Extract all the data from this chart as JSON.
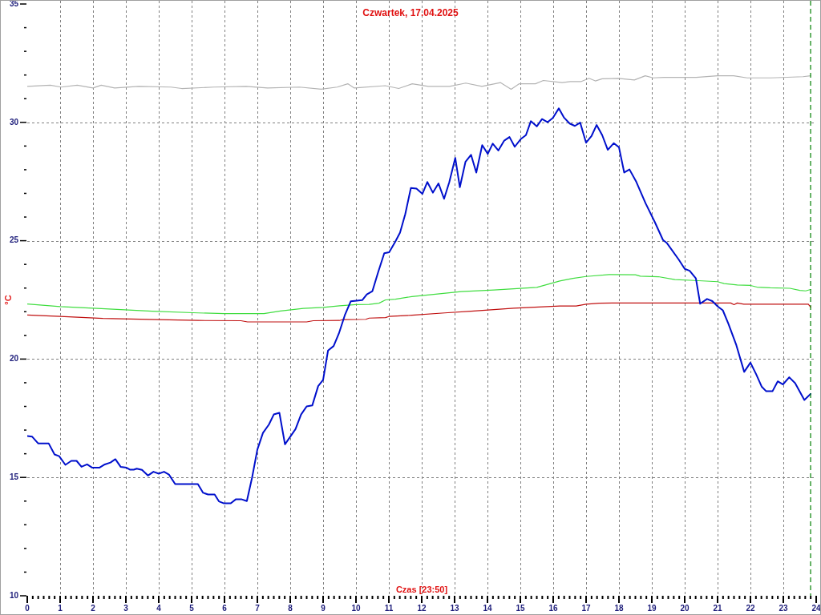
{
  "chart_data": {
    "type": "line",
    "title": "Czwartek, 17.04.2025",
    "xlabel": "Czas [23:50]",
    "ylabel": "°C",
    "xlim": [
      0,
      24
    ],
    "xticks": [
      0,
      {
        "value": 0.167,
        "label": null
      },
      {
        "value": 0.333,
        "label": null
      },
      {
        "value": 0.5,
        "label": null
      },
      {
        "value": 0.667,
        "label": null
      },
      {
        "value": 0.833,
        "label": null
      },
      1,
      {
        "value": 1.167,
        "label": null
      },
      {
        "value": 1.333,
        "label": null
      },
      {
        "value": 1.5,
        "label": null
      },
      {
        "value": 1.667,
        "label": null
      },
      {
        "value": 1.833,
        "label": null
      },
      2,
      {
        "value": 2.167,
        "label": null
      },
      {
        "value": 2.333,
        "label": null
      },
      {
        "value": 2.5,
        "label": null
      },
      {
        "value": 2.667,
        "label": null
      },
      {
        "value": 2.833,
        "label": null
      },
      3,
      {
        "value": 3.167,
        "label": null
      },
      {
        "value": 3.333,
        "label": null
      },
      {
        "value": 3.5,
        "label": null
      },
      {
        "value": 3.667,
        "label": null
      },
      {
        "value": 3.833,
        "label": null
      },
      4,
      {
        "value": 4.167,
        "label": null
      },
      {
        "value": 4.333,
        "label": null
      },
      {
        "value": 4.5,
        "label": null
      },
      {
        "value": 4.667,
        "label": null
      },
      {
        "value": 4.833,
        "label": null
      },
      5,
      {
        "value": 5.167,
        "label": null
      },
      {
        "value": 5.333,
        "label": null
      },
      {
        "value": 5.5,
        "label": null
      },
      {
        "value": 5.667,
        "label": null
      },
      {
        "value": 5.833,
        "label": null
      },
      6,
      {
        "value": 6.167,
        "label": null
      },
      {
        "value": 6.333,
        "label": null
      },
      {
        "value": 6.5,
        "label": null
      },
      {
        "value": 6.667,
        "label": null
      },
      {
        "value": 6.833,
        "label": null
      },
      7,
      {
        "value": 7.167,
        "label": null
      },
      {
        "value": 7.333,
        "label": null
      },
      {
        "value": 7.5,
        "label": null
      },
      {
        "value": 7.667,
        "label": null
      },
      {
        "value": 7.833,
        "label": null
      },
      8,
      {
        "value": 8.167,
        "label": null
      },
      {
        "value": 8.333,
        "label": null
      },
      {
        "value": 8.5,
        "label": null
      },
      {
        "value": 8.667,
        "label": null
      },
      {
        "value": 8.833,
        "label": null
      },
      9,
      {
        "value": 9.167,
        "label": null
      },
      {
        "value": 9.333,
        "label": null
      },
      {
        "value": 9.5,
        "label": null
      },
      {
        "value": 9.667,
        "label": null
      },
      {
        "value": 9.833,
        "label": null
      },
      10,
      {
        "value": 10.167,
        "label": null
      },
      {
        "value": 10.333,
        "label": null
      },
      {
        "value": 10.5,
        "label": null
      },
      {
        "value": 10.667,
        "label": null
      },
      {
        "value": 10.833,
        "label": null
      },
      11,
      {
        "value": 11.167,
        "label": null
      },
      {
        "value": 11.333,
        "label": null
      },
      {
        "value": 11.5,
        "label": null
      },
      {
        "value": 11.667,
        "label": null
      },
      {
        "value": 11.833,
        "label": null
      },
      12,
      {
        "value": 12.167,
        "label": null
      },
      {
        "value": 12.333,
        "label": null
      },
      {
        "value": 12.5,
        "label": null
      },
      {
        "value": 12.667,
        "label": null
      },
      {
        "value": 12.833,
        "label": null
      },
      13,
      {
        "value": 13.167,
        "label": null
      },
      {
        "value": 13.333,
        "label": null
      },
      {
        "value": 13.5,
        "label": null
      },
      {
        "value": 13.667,
        "label": null
      },
      {
        "value": 13.833,
        "label": null
      },
      14,
      {
        "value": 14.167,
        "label": null
      },
      {
        "value": 14.333,
        "label": null
      },
      {
        "value": 14.5,
        "label": null
      },
      {
        "value": 14.667,
        "label": null
      },
      {
        "value": 14.833,
        "label": null
      },
      15,
      {
        "value": 15.167,
        "label": null
      },
      {
        "value": 15.333,
        "label": null
      },
      {
        "value": 15.5,
        "label": null
      },
      {
        "value": 15.667,
        "label": null
      },
      {
        "value": 15.833,
        "label": null
      },
      16,
      {
        "value": 16.167,
        "label": null
      },
      {
        "value": 16.333,
        "label": null
      },
      {
        "value": 16.5,
        "label": null
      },
      {
        "value": 16.667,
        "label": null
      },
      {
        "value": 16.833,
        "label": null
      },
      17,
      {
        "value": 17.167,
        "label": null
      },
      {
        "value": 17.333,
        "label": null
      },
      {
        "value": 17.5,
        "label": null
      },
      {
        "value": 17.667,
        "label": null
      },
      {
        "value": 17.833,
        "label": null
      },
      18,
      {
        "value": 18.167,
        "label": null
      },
      {
        "value": 18.333,
        "label": null
      },
      {
        "value": 18.5,
        "label": null
      },
      {
        "value": 18.667,
        "label": null
      },
      {
        "value": 18.833,
        "label": null
      },
      19,
      {
        "value": 19.167,
        "label": null
      },
      {
        "value": 19.333,
        "label": null
      },
      {
        "value": 19.5,
        "label": null
      },
      {
        "value": 19.667,
        "label": null
      },
      {
        "value": 19.833,
        "label": null
      },
      20,
      {
        "value": 20.167,
        "label": null
      },
      {
        "value": 20.333,
        "label": null
      },
      {
        "value": 20.5,
        "label": null
      },
      {
        "value": 20.667,
        "label": null
      },
      {
        "value": 20.833,
        "label": null
      },
      21,
      {
        "value": 21.167,
        "label": null
      },
      {
        "value": 21.333,
        "label": null
      },
      {
        "value": 21.5,
        "label": null
      },
      {
        "value": 21.667,
        "label": null
      },
      {
        "value": 21.833,
        "label": null
      },
      22,
      {
        "value": 22.167,
        "label": null
      },
      {
        "value": 22.333,
        "label": null
      },
      {
        "value": 22.5,
        "label": null
      },
      {
        "value": 22.667,
        "label": null
      },
      {
        "value": 22.833,
        "label": null
      },
      23,
      {
        "value": 23.167,
        "label": null
      },
      {
        "value": 23.333,
        "label": null
      },
      {
        "value": 23.5,
        "label": null
      },
      {
        "value": 23.667,
        "label": null
      },
      {
        "value": 23.833,
        "label": null
      },
      24
    ],
    "ylim": [
      10,
      35
    ],
    "yticks": [
      10,
      {
        "value": 11,
        "label": null
      },
      {
        "value": 12,
        "label": null
      },
      {
        "value": 13,
        "label": null
      },
      {
        "value": 14,
        "label": null
      },
      15,
      {
        "value": 16,
        "label": null
      },
      {
        "value": 17,
        "label": null
      },
      {
        "value": 18,
        "label": null
      },
      {
        "value": 19,
        "label": null
      },
      20,
      {
        "value": 21,
        "label": null
      },
      {
        "value": 22,
        "label": null
      },
      {
        "value": 23,
        "label": null
      },
      {
        "value": 24,
        "label": null
      },
      25,
      {
        "value": 26,
        "label": null
      },
      {
        "value": 27,
        "label": null
      },
      {
        "value": 28,
        "label": null
      },
      {
        "value": 29,
        "label": null
      },
      30,
      {
        "value": 31,
        "label": null
      },
      {
        "value": 32,
        "label": null
      },
      {
        "value": 33,
        "label": null
      },
      {
        "value": 34,
        "label": null
      },
      35
    ],
    "grid": true,
    "legend": false,
    "series": [
      {
        "color": "#0010cc",
        "x": [
          0,
          0.15,
          0.33,
          0.65,
          0.83,
          0.97,
          1.16,
          1.34,
          1.5,
          1.65,
          1.82,
          1.98,
          2.19,
          2.36,
          2.53,
          2.68,
          2.84,
          3.02,
          3.12,
          3.24,
          3.33,
          3.49,
          3.67,
          3.84,
          4.0,
          4.16,
          4.31,
          4.5,
          5.19,
          5.35,
          5.5,
          5.7,
          5.83,
          5.97,
          6.19,
          6.35,
          6.51,
          6.68,
          6.84,
          7.0,
          7.17,
          7.35,
          7.5,
          7.67,
          7.84,
          8.0,
          8.16,
          8.33,
          8.5,
          8.67,
          8.85,
          9.0,
          9.15,
          9.32,
          9.48,
          9.66,
          9.84,
          10.02,
          10.19,
          10.33,
          10.5,
          10.67,
          10.86,
          11.01,
          11.2,
          11.34,
          11.5,
          11.67,
          11.84,
          12.02,
          12.17,
          12.34,
          12.51,
          12.68,
          12.84,
          13.02,
          13.16,
          13.33,
          13.5,
          13.66,
          13.84,
          14.01,
          14.16,
          14.33,
          14.51,
          14.67,
          14.83,
          15.01,
          15.17,
          15.32,
          15.5,
          15.66,
          15.83,
          15.99,
          16.17,
          16.33,
          16.5,
          16.66,
          16.82,
          17.0,
          17.16,
          17.32,
          17.49,
          17.66,
          17.84,
          18.0,
          18.16,
          18.32,
          18.53,
          18.81,
          19.09,
          19.34,
          19.46,
          19.82,
          20.0,
          20.15,
          20.34,
          20.47,
          20.68,
          20.84,
          21.0,
          21.16,
          21.33,
          21.57,
          21.81,
          22.0,
          22.18,
          22.34,
          22.48,
          22.67,
          22.83,
          22.99,
          23.18,
          23.36,
          23.64,
          23.83
        ],
        "values": [
          16.75,
          16.72,
          16.44,
          16.44,
          15.97,
          15.9,
          15.53,
          15.7,
          15.7,
          15.45,
          15.55,
          15.41,
          15.41,
          15.55,
          15.63,
          15.77,
          15.45,
          15.41,
          15.33,
          15.33,
          15.37,
          15.32,
          15.08,
          15.24,
          15.16,
          15.24,
          15.12,
          14.72,
          14.72,
          14.35,
          14.28,
          14.28,
          13.99,
          13.91,
          13.91,
          14.08,
          14.08,
          14.0,
          15.0,
          16.18,
          16.88,
          17.23,
          17.66,
          17.73,
          16.4,
          16.72,
          17.04,
          17.66,
          18.0,
          18.04,
          18.86,
          19.12,
          20.36,
          20.55,
          21.08,
          21.85,
          22.44,
          22.47,
          22.49,
          22.73,
          22.87,
          23.65,
          24.47,
          24.51,
          24.97,
          25.34,
          26.13,
          27.23,
          27.2,
          26.98,
          27.48,
          27.03,
          27.42,
          26.77,
          27.48,
          28.5,
          27.26,
          28.33,
          28.63,
          27.88,
          29.04,
          28.67,
          29.1,
          28.81,
          29.23,
          29.38,
          28.97,
          29.29,
          29.46,
          30.05,
          29.83,
          30.14,
          30.01,
          30.19,
          30.59,
          30.2,
          29.95,
          29.85,
          29.99,
          29.14,
          29.41,
          29.89,
          29.46,
          28.84,
          29.12,
          28.95,
          27.88,
          28.01,
          27.48,
          26.58,
          25.79,
          25.03,
          24.9,
          24.2,
          23.81,
          23.73,
          23.41,
          22.34,
          22.54,
          22.45,
          22.23,
          22.06,
          21.49,
          20.59,
          19.46,
          19.85,
          19.34,
          18.84,
          18.64,
          18.64,
          19.06,
          18.93,
          19.23,
          18.98,
          18.27,
          18.53
        ]
      },
      {
        "color": "#40dd40",
        "x": [
          0,
          1.0,
          2.25,
          3.8,
          5.2,
          6.0,
          7.2,
          7.7,
          8.4,
          9.0,
          9.5,
          10.0,
          10.4,
          10.7,
          10.9,
          11.2,
          11.7,
          13.2,
          14.2,
          15.5,
          16.2,
          16.6,
          17.0,
          17.7,
          18.5,
          18.65,
          19.2,
          19.7,
          20.3,
          21.0,
          21.2,
          21.6,
          22.0,
          22.2,
          22.6,
          23.2,
          23.5,
          23.68,
          23.83
        ],
        "values": [
          22.33,
          22.22,
          22.13,
          22.02,
          21.95,
          21.92,
          21.92,
          22.03,
          22.14,
          22.18,
          22.25,
          22.3,
          22.31,
          22.36,
          22.5,
          22.53,
          22.64,
          22.85,
          22.92,
          23.03,
          23.3,
          23.41,
          23.49,
          23.57,
          23.56,
          23.5,
          23.48,
          23.36,
          23.32,
          23.27,
          23.19,
          23.13,
          23.11,
          23.04,
          23.01,
          22.99,
          22.9,
          22.88,
          22.94
        ]
      },
      {
        "color": "#c01010",
        "x": [
          0,
          1.0,
          2.3,
          4.0,
          5.2,
          6.5,
          6.7,
          8.5,
          8.7,
          9.5,
          9.6,
          10.3,
          10.4,
          10.9,
          11.0,
          11.7,
          12.7,
          13.5,
          14.8,
          16.2,
          16.7,
          17.0,
          17.4,
          18.0,
          21.4,
          21.5,
          21.6,
          21.8,
          23.76,
          23.83
        ],
        "values": [
          21.86,
          21.8,
          21.72,
          21.67,
          21.63,
          21.62,
          21.57,
          21.57,
          21.62,
          21.63,
          21.67,
          21.68,
          21.73,
          21.75,
          21.8,
          21.85,
          21.95,
          22.02,
          22.15,
          22.24,
          22.24,
          22.32,
          22.36,
          22.37,
          22.37,
          22.3,
          22.37,
          22.32,
          22.32,
          22.2
        ]
      },
      {
        "color": "#b4b4b4",
        "x": [
          0,
          0.7,
          1.03,
          1.52,
          2.0,
          2.25,
          2.66,
          3.39,
          4.37,
          4.7,
          5.68,
          6.66,
          7.31,
          8.28,
          8.94,
          9.43,
          9.75,
          9.95,
          10.89,
          11.3,
          11.71,
          12.2,
          12.85,
          13.34,
          13.83,
          14.4,
          14.72,
          14.97,
          15.46,
          15.7,
          16.27,
          16.52,
          16.84,
          17.09,
          17.28,
          17.49,
          17.98,
          18.47,
          18.8,
          19.04,
          19.37,
          20.35,
          21.0,
          21.49,
          21.9,
          22.63,
          23.6,
          23.83
        ],
        "values": [
          31.52,
          31.57,
          31.49,
          31.57,
          31.45,
          31.57,
          31.45,
          31.52,
          31.49,
          31.43,
          31.49,
          31.52,
          31.45,
          31.49,
          31.4,
          31.49,
          31.63,
          31.45,
          31.55,
          31.43,
          31.63,
          31.52,
          31.52,
          31.66,
          31.52,
          31.68,
          31.4,
          31.63,
          31.63,
          31.77,
          31.68,
          31.72,
          31.72,
          31.86,
          31.75,
          31.84,
          31.86,
          31.79,
          31.97,
          31.88,
          31.9,
          31.9,
          31.97,
          31.97,
          31.88,
          31.88,
          31.93,
          31.97
        ]
      }
    ],
    "ref_lines": [
      {
        "axis": "x",
        "value": 23.83,
        "color": "#008000",
        "line_style": "dashed"
      }
    ]
  }
}
